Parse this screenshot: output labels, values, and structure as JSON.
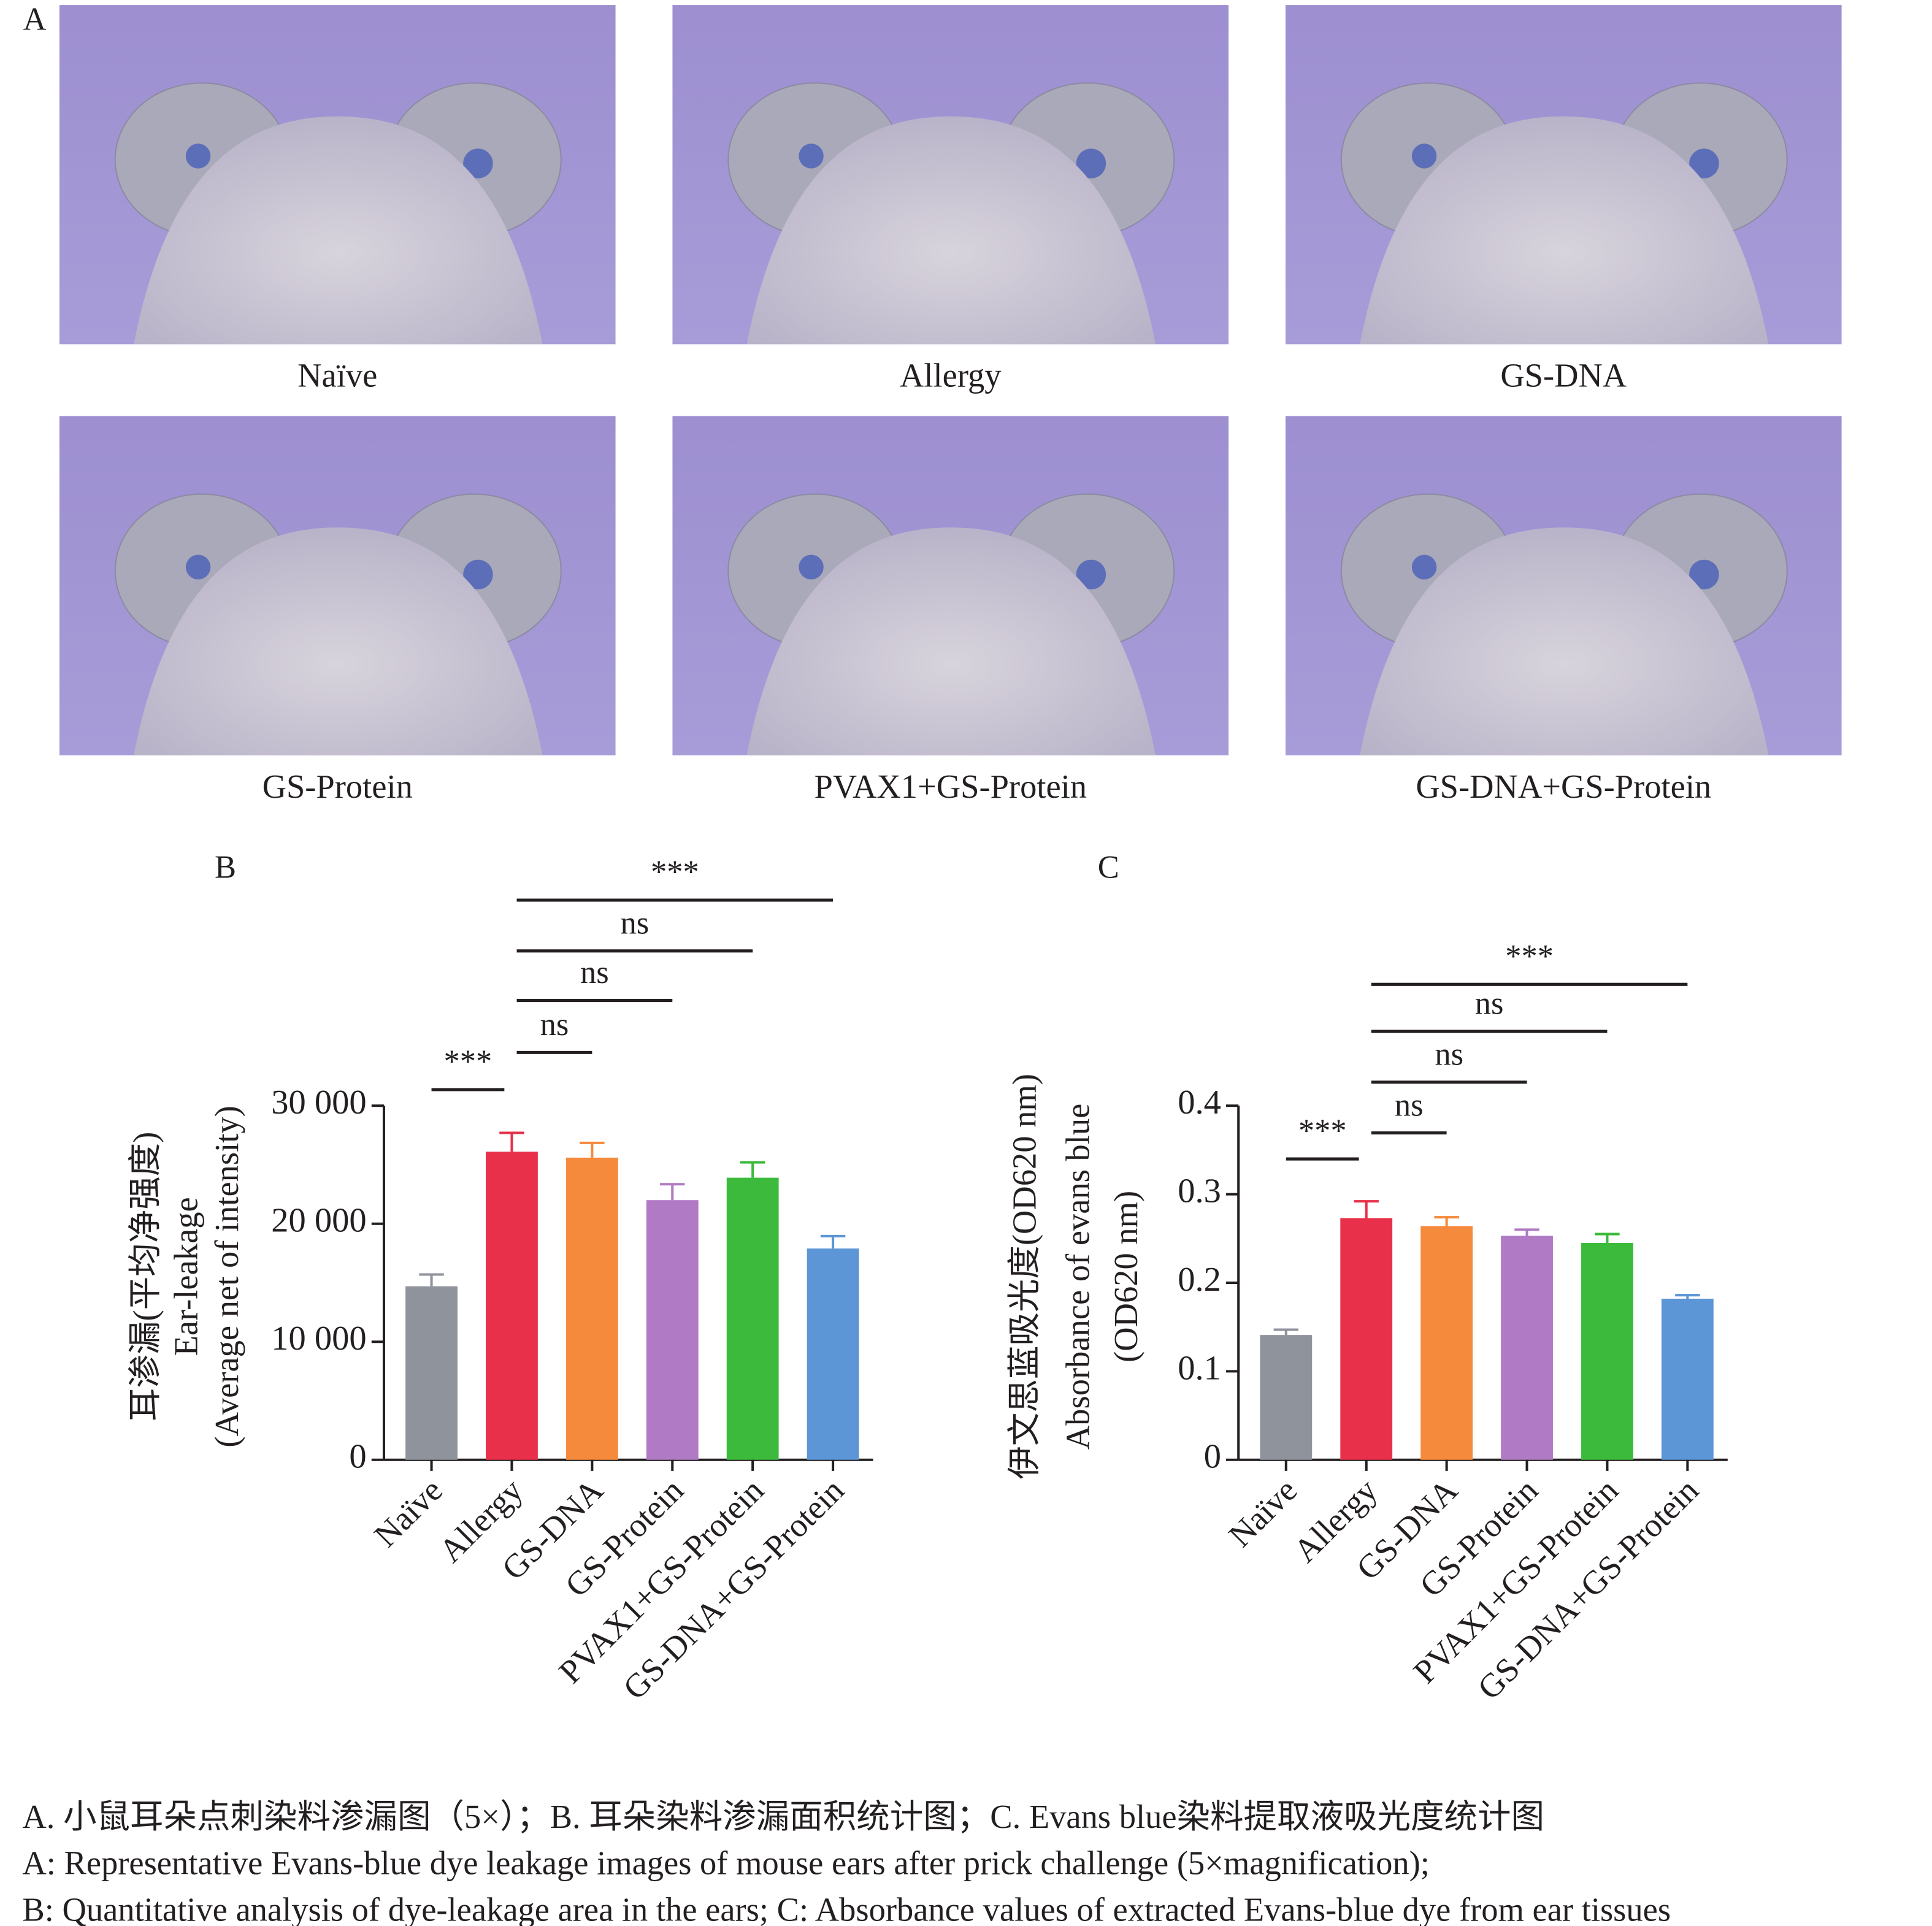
{
  "panel_a": {
    "letter": "A",
    "images": [
      "Naïve",
      "Allergy",
      "GS-DNA",
      "GS-Protein",
      "PVAX1+GS-Protein",
      "GS-DNA+GS-Protein"
    ]
  },
  "chart_data": [
    {
      "type": "bar",
      "panel": "B",
      "y_label": [
        "耳渗漏(平均净强度)",
        "Ear-leakage",
        "(Average net of intensity)"
      ],
      "categories": [
        "Naïve",
        "Allergy",
        "GS-DNA",
        "GS-Protein",
        "PVAX1+GS-Protein",
        "GS-DNA+GS-Protein"
      ],
      "colors": [
        "#8f939c",
        "#e8304a",
        "#f58a3c",
        "#b07ac4",
        "#3cba3c",
        "#5c96d6"
      ],
      "values": [
        14700,
        26100,
        25600,
        22000,
        23900,
        17900
      ],
      "errors": [
        1000,
        1600,
        1250,
        1350,
        1300,
        1050
      ],
      "ylim": [
        0,
        30000
      ],
      "yticks": [
        0,
        {
          "value": 10000,
          "label": "10 000"
        },
        {
          "value": 20000,
          "label": "20 000"
        },
        {
          "value": 30000,
          "label": "30 000"
        }
      ],
      "comparisons": [
        {
          "from": "Naïve",
          "to": "Allergy",
          "label": "***"
        },
        {
          "from": "Allergy",
          "to": "GS-DNA",
          "label": "ns"
        },
        {
          "from": "Allergy",
          "to": "GS-Protein",
          "label": "ns"
        },
        {
          "from": "Allergy",
          "to": "PVAX1+GS-Protein",
          "label": "ns"
        },
        {
          "from": "Allergy",
          "to": "GS-DNA+GS-Protein",
          "label": "***"
        }
      ]
    },
    {
      "type": "bar",
      "panel": "C",
      "y_label": [
        "伊文思蓝吸光度(OD620 nm)",
        "Absorbance of evans blue",
        "(OD620 nm)"
      ],
      "categories": [
        "Naïve",
        "Allergy",
        "GS-DNA",
        "GS-Protein",
        "PVAX1+GS-Protein",
        "GS-DNA+GS-Protein"
      ],
      "colors": [
        "#8f939c",
        "#e8304a",
        "#f58a3c",
        "#b07ac4",
        "#3cba3c",
        "#5c96d6"
      ],
      "values": [
        0.141,
        0.273,
        0.264,
        0.253,
        0.245,
        0.182
      ],
      "errors": [
        0.006,
        0.019,
        0.01,
        0.007,
        0.01,
        0.004
      ],
      "ylim": [
        0,
        0.4
      ],
      "yticks": [
        0,
        0.1,
        0.2,
        0.3,
        0.4
      ],
      "comparisons": [
        {
          "from": "Naïve",
          "to": "Allergy",
          "label": "***"
        },
        {
          "from": "Allergy",
          "to": "GS-DNA",
          "label": "ns"
        },
        {
          "from": "Allergy",
          "to": "GS-Protein",
          "label": "ns"
        },
        {
          "from": "Allergy",
          "to": "PVAX1+GS-Protein",
          "label": "ns"
        },
        {
          "from": "Allergy",
          "to": "GS-DNA+GS-Protein",
          "label": "***"
        }
      ]
    }
  ],
  "caption": [
    "A. 小鼠耳朵点刺染料渗漏图（5×）；B. 耳朵染料渗漏面积统计图；C. Evans blue染料提取液吸光度统计图",
    "A: Representative Evans-blue dye leakage images of mouse ears after prick challenge (5×magnification);",
    "B: Quantitative analysis of dye-leakage area in the ears; C: Absorbance values of extracted Evans-blue dye from ear tissues"
  ]
}
